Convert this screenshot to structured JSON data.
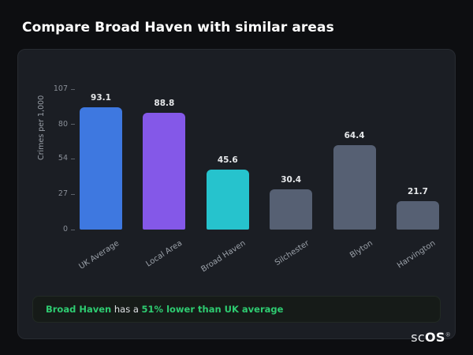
{
  "page_title": "Compare Broad Haven with similar areas",
  "chart_data": {
    "type": "bar",
    "title": "",
    "xlabel": "",
    "ylabel": "Crimes per 1,000",
    "categories": [
      "UK Average",
      "Local Area",
      "Broad Haven",
      "Silchester",
      "Blyton",
      "Harvington"
    ],
    "values": [
      93.1,
      88.8,
      45.6,
      30.4,
      64.4,
      21.7
    ],
    "value_labels": [
      "93.1",
      "88.8",
      "45.6",
      "30.4",
      "64.4",
      "21.7"
    ],
    "bar_colors": [
      "#3e78e0",
      "#8458e8",
      "#26c3cd",
      "#566073",
      "#566073",
      "#566073"
    ],
    "yticks": [
      0,
      27,
      54,
      80,
      107
    ],
    "ylim": [
      0,
      107
    ],
    "grid": false,
    "legend": false
  },
  "note": {
    "highlight_name": "Broad Haven",
    "middle_text": " has a ",
    "highlight_stat": "51% lower than UK average",
    "accent_color": "#2ecc71"
  },
  "logo": {
    "prefix": "sc",
    "suffix": "OS",
    "mark": "®"
  }
}
